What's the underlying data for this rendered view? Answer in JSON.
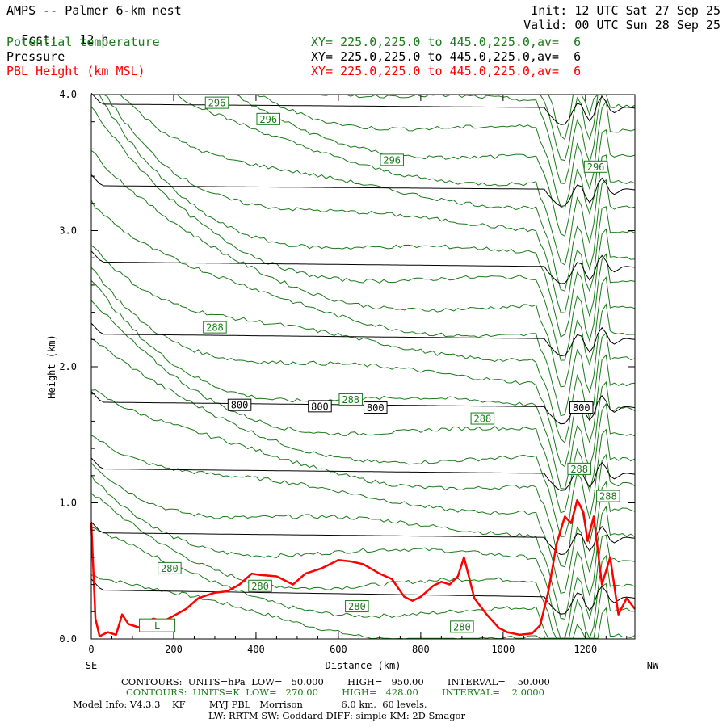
{
  "header": {
    "title": "AMPS -- Palmer 6-km nest",
    "forecast_label": "Fcst:",
    "forecast_hours": "12 h",
    "init": "Init: 12 UTC Sat 27 Sep 25",
    "valid": "Valid: 00 UTC Sun 28 Sep 25",
    "fields": [
      {
        "name": "Potential temperature",
        "xy": "XY= 225.0,225.0 to 445.0,225.0,av=  6",
        "color": "#1a7a1a"
      },
      {
        "name": "Pressure",
        "xy": "XY= 225.0,225.0 to 445.0,225.0,av=  6",
        "color": "#000000"
      },
      {
        "name": "PBL Height (km MSL)",
        "xy": "XY= 225.0,225.0 to 445.0,225.0,av=  6",
        "color": "#ff0000"
      }
    ]
  },
  "chart_data": {
    "type": "line",
    "xlabel": "Distance (km)",
    "ylabel": "Height (km)",
    "xlim": [
      0,
      1320
    ],
    "ylim": [
      0,
      4.0
    ],
    "x_ticks": [
      0,
      200,
      400,
      600,
      800,
      1000,
      1200
    ],
    "y_ticks": [
      0.0,
      1.0,
      2.0,
      3.0,
      4.0
    ],
    "y_tick_labels": [
      "0.0",
      "1.0",
      "2.0",
      "3.0",
      "4.0"
    ],
    "left_end_label": "SE",
    "right_end_label": "NW",
    "low_marker": "L",
    "pressure_contour_labels": [
      {
        "text": "800",
        "x": 360,
        "y": 1.72
      },
      {
        "text": "800",
        "x": 555,
        "y": 1.71
      },
      {
        "text": "800",
        "x": 690,
        "y": 1.7
      },
      {
        "text": "800",
        "x": 1190,
        "y": 1.7
      }
    ],
    "theta_contour_labels": [
      {
        "text": "296",
        "x": 305,
        "y": 3.94
      },
      {
        "text": "296",
        "x": 430,
        "y": 3.82
      },
      {
        "text": "296",
        "x": 730,
        "y": 3.52
      },
      {
        "text": "296",
        "x": 1225,
        "y": 3.47
      },
      {
        "text": "288",
        "x": 300,
        "y": 2.29
      },
      {
        "text": "288",
        "x": 630,
        "y": 1.76
      },
      {
        "text": "288",
        "x": 950,
        "y": 1.62
      },
      {
        "text": "288",
        "x": 1185,
        "y": 1.25
      },
      {
        "text": "288",
        "x": 1255,
        "y": 1.05
      },
      {
        "text": "280",
        "x": 190,
        "y": 0.52
      },
      {
        "text": "280",
        "x": 410,
        "y": 0.39
      },
      {
        "text": "280",
        "x": 645,
        "y": 0.24
      },
      {
        "text": "280",
        "x": 900,
        "y": 0.09
      }
    ],
    "pressure_levels_hPa": [
      950,
      900,
      850,
      800,
      750,
      700,
      650,
      600
    ],
    "pressure_contours": [
      {
        "name": "950",
        "y_left": 0.36,
        "y_right": 0.3
      },
      {
        "name": "900",
        "y_left": 0.78,
        "y_right": 0.74
      },
      {
        "name": "850",
        "y_left": 1.25,
        "y_right": 1.21
      },
      {
        "name": "800",
        "y_left": 1.74,
        "y_right": 1.7
      },
      {
        "name": "750",
        "y_left": 2.24,
        "y_right": 2.2
      },
      {
        "name": "700",
        "y_left": 2.77,
        "y_right": 2.73
      },
      {
        "name": "650",
        "y_left": 3.33,
        "y_right": 3.3
      },
      {
        "name": "600",
        "y_left": 3.93,
        "y_right": 3.9
      }
    ],
    "series": [
      {
        "name": "PBL Height (km MSL)",
        "color": "#ff0000",
        "x": [
          0,
          10,
          20,
          40,
          60,
          75,
          90,
          120,
          150,
          175,
          200,
          230,
          260,
          300,
          330,
          360,
          390,
          410,
          450,
          490,
          520,
          560,
          600,
          630,
          660,
          700,
          730,
          760,
          780,
          800,
          830,
          850,
          870,
          890,
          905,
          915,
          930,
          960,
          990,
          1010,
          1040,
          1070,
          1090,
          1110,
          1130,
          1150,
          1165,
          1180,
          1195,
          1205,
          1220,
          1240,
          1260,
          1280,
          1300,
          1320
        ],
        "y": [
          0.85,
          0.15,
          0.02,
          0.05,
          0.03,
          0.18,
          0.11,
          0.08,
          0.15,
          0.13,
          0.17,
          0.22,
          0.3,
          0.34,
          0.35,
          0.4,
          0.48,
          0.47,
          0.46,
          0.4,
          0.48,
          0.52,
          0.58,
          0.57,
          0.55,
          0.48,
          0.44,
          0.31,
          0.28,
          0.31,
          0.39,
          0.42,
          0.4,
          0.46,
          0.6,
          0.48,
          0.3,
          0.18,
          0.08,
          0.05,
          0.03,
          0.04,
          0.1,
          0.35,
          0.7,
          0.9,
          0.85,
          1.02,
          0.93,
          0.72,
          0.9,
          0.4,
          0.6,
          0.18,
          0.3,
          0.22
        ]
      }
    ]
  },
  "footer": {
    "line1": "CONTOURS:  UNITS=hPa  LOW=   50.000        HIGH=   950.00        INTERVAL=    50.000",
    "line2": "CONTOURS:  UNITS=K  LOW=   270.00        HIGH=   428.00        INTERVAL=    2.0000",
    "line3": "Model Info: V4.3.3    KF        MYJ PBL   Morrison             6.0 km,  60 levels,",
    "line4": "LW: RRTM SW: Goddard DIFF: simple KM: 2D Smagor"
  },
  "colors": {
    "theta": "#1a7a1a",
    "pressure": "#000000",
    "pbl": "#ff0000",
    "frame": "#000000"
  }
}
